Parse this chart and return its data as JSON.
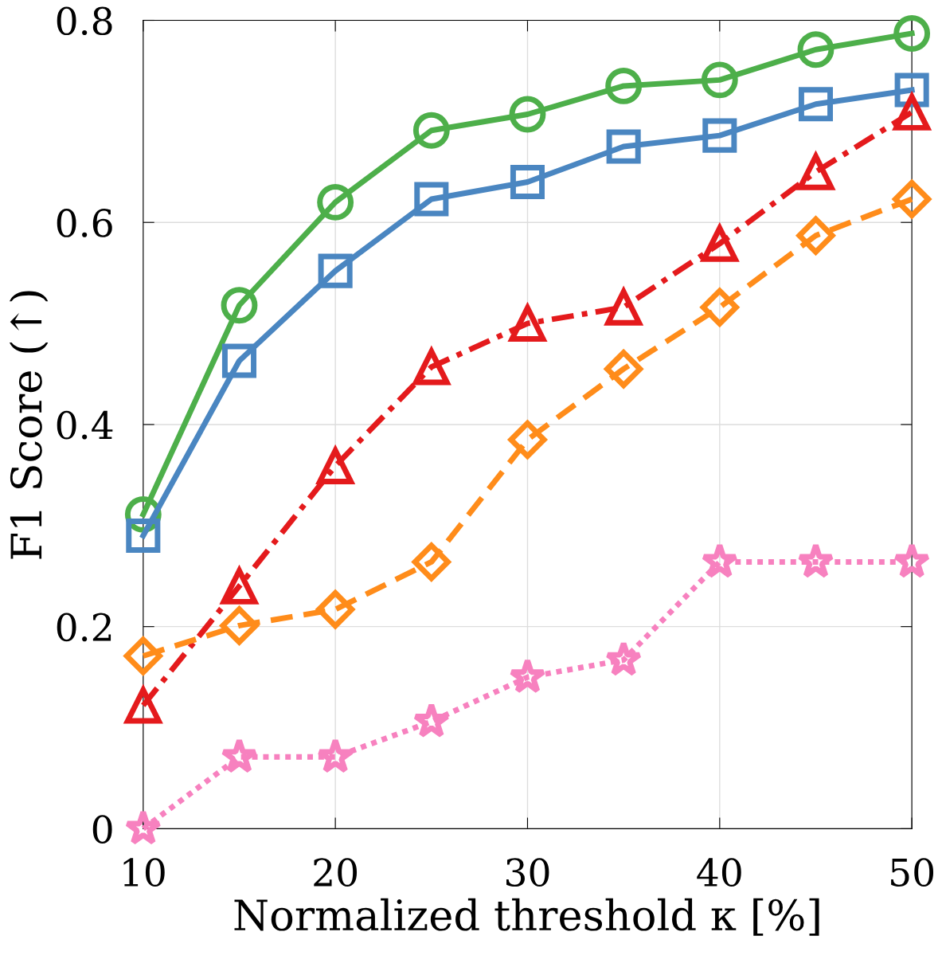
{
  "chart_data": {
    "type": "line",
    "xlabel": "Normalized threshold κ [%]",
    "ylabel": "F1 Score (↑)",
    "x": [
      10,
      15,
      20,
      25,
      30,
      35,
      40,
      45,
      50
    ],
    "xlim": [
      10,
      50
    ],
    "xticks": [
      10,
      20,
      30,
      40,
      50
    ],
    "ylim": [
      0,
      0.8
    ],
    "yticks": [
      0,
      0.2,
      0.4,
      0.6,
      0.8
    ],
    "grid": true,
    "legend": false,
    "series": [
      {
        "color": "#4daf4a",
        "marker": "circle",
        "line_style": "solid",
        "values": [
          0.311,
          0.518,
          0.62,
          0.691,
          0.707,
          0.735,
          0.741,
          0.771,
          0.787
        ]
      },
      {
        "color": "#4a86c1",
        "marker": "square",
        "line_style": "solid",
        "values": [
          0.29,
          0.463,
          0.552,
          0.623,
          0.64,
          0.675,
          0.686,
          0.717,
          0.731
        ]
      },
      {
        "color": "#e41a1c",
        "marker": "triangle",
        "line_style": "dashdot",
        "values": [
          0.122,
          0.24,
          0.359,
          0.457,
          0.5,
          0.516,
          0.579,
          0.65,
          0.709
        ]
      },
      {
        "color": "#ff8c1a",
        "marker": "diamond",
        "line_style": "dashed",
        "values": [
          0.171,
          0.201,
          0.217,
          0.264,
          0.385,
          0.455,
          0.516,
          0.587,
          0.623
        ]
      },
      {
        "color": "#f781bf",
        "marker": "star",
        "line_style": "dotted",
        "values": [
          0.0,
          0.071,
          0.071,
          0.106,
          0.15,
          0.167,
          0.264,
          0.264,
          0.264
        ]
      }
    ]
  }
}
